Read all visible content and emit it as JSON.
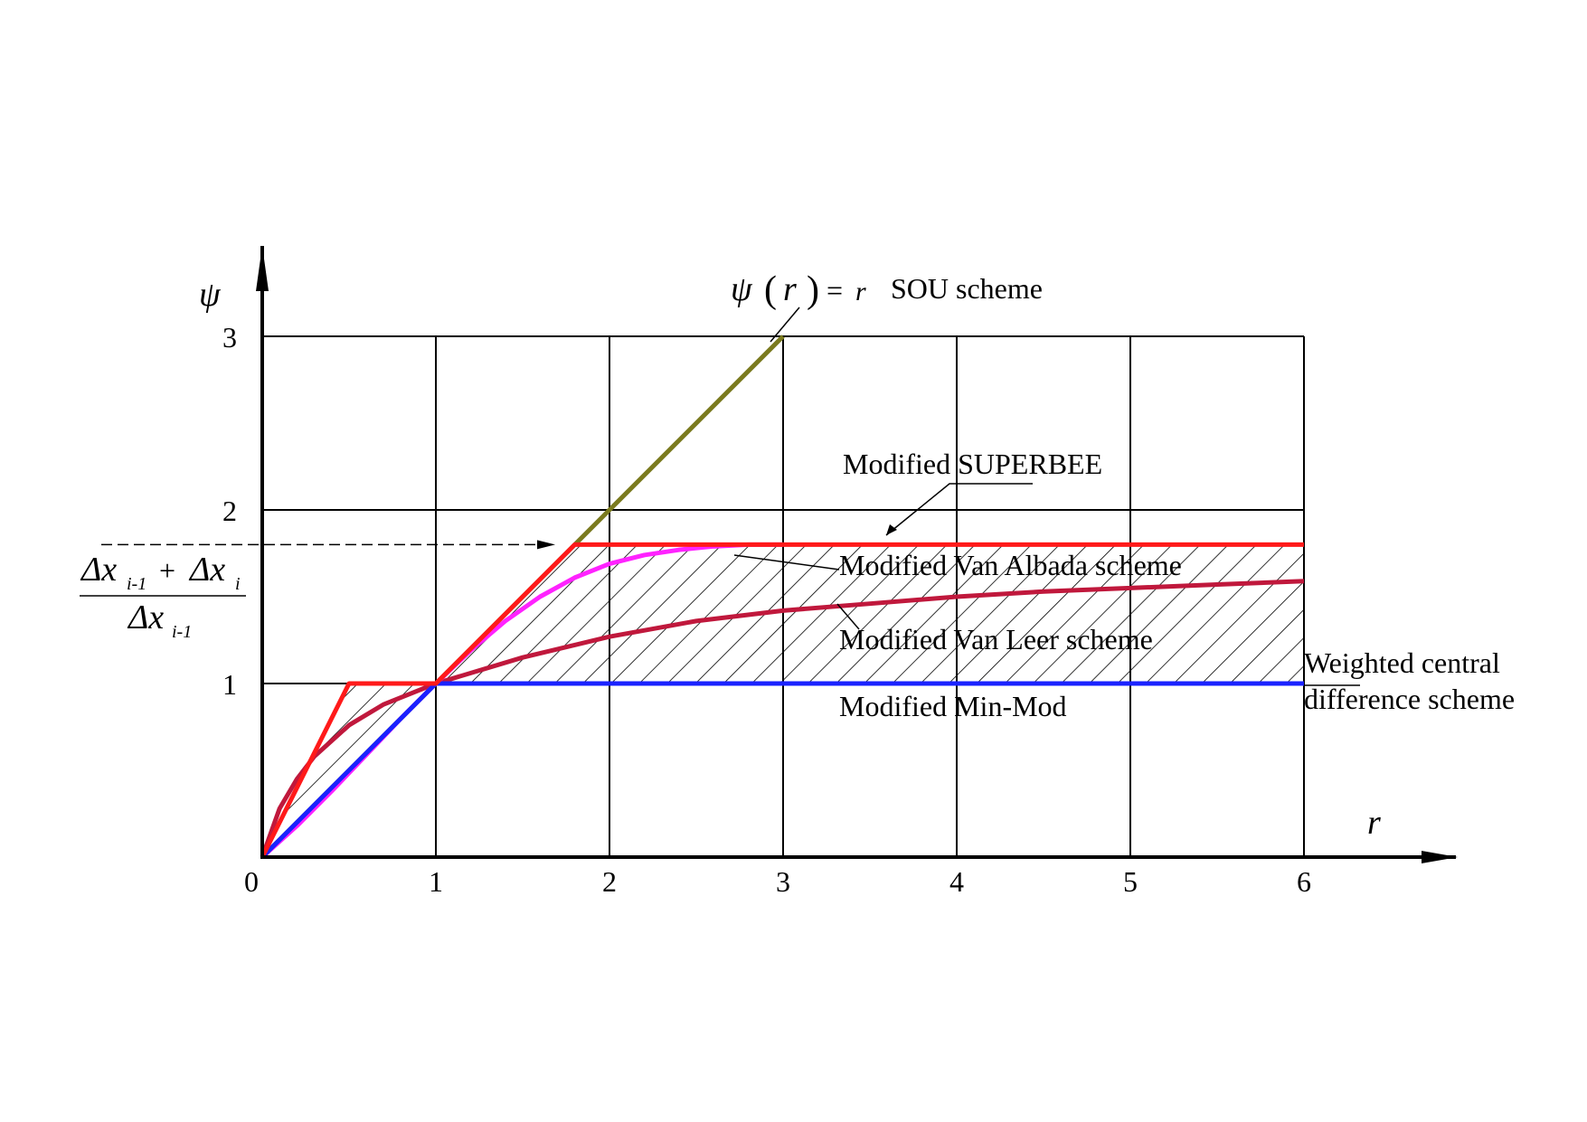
{
  "chart_data": {
    "type": "line",
    "title": "",
    "xlabel": "r",
    "ylabel": "ψ",
    "xlim": [
      0,
      6
    ],
    "ylim": [
      0,
      3
    ],
    "xticks": [
      "0",
      "1",
      "2",
      "3",
      "4",
      "5",
      "6"
    ],
    "yticks": [
      "1",
      "2",
      "3"
    ],
    "grid": true,
    "ratio_value": 1.8,
    "ratio_label": {
      "num_a": "Δx",
      "num_a_sub": "i-1",
      "plus": "+",
      "num_b": "Δx",
      "num_b_sub": "i",
      "den": "Δx",
      "den_sub": "i-1"
    },
    "sou_label": {
      "psi": "ψ",
      "lparen": "(",
      "r": "r",
      "rparen": ")",
      "eq": "=",
      "r2": "r",
      "name": "SOU scheme"
    },
    "series": [
      {
        "name": "SOU scheme",
        "color": "#7a7a1e",
        "x": [
          0,
          3
        ],
        "y": [
          0,
          3
        ]
      },
      {
        "name": "Modified SUPERBEE",
        "color": "#ff1a1a",
        "x": [
          0,
          0.5,
          1,
          1.8,
          6
        ],
        "y": [
          0,
          1,
          1,
          1.8,
          1.8
        ]
      },
      {
        "name": "Modified Van Albada scheme",
        "color": "#ff22ff",
        "x": [
          0,
          0.2,
          0.4,
          0.6,
          0.8,
          1.0,
          1.2,
          1.4,
          1.6,
          1.8,
          2.0,
          2.2,
          2.4,
          2.6,
          2.8,
          3.0
        ],
        "y": [
          0,
          0.18,
          0.38,
          0.59,
          0.8,
          1.0,
          1.19,
          1.36,
          1.5,
          1.61,
          1.69,
          1.74,
          1.77,
          1.79,
          1.8,
          1.8
        ]
      },
      {
        "name": "Modified Van Leer scheme",
        "color": "#c0183c",
        "x": [
          0,
          0.1,
          0.2,
          0.3,
          0.5,
          0.7,
          1.0,
          1.5,
          2.0,
          2.5,
          3.0,
          3.5,
          4.0,
          4.5,
          5.0,
          5.5,
          6.0
        ],
        "y": [
          0,
          0.28,
          0.45,
          0.58,
          0.76,
          0.88,
          1.0,
          1.15,
          1.27,
          1.36,
          1.42,
          1.46,
          1.5,
          1.53,
          1.55,
          1.57,
          1.59
        ]
      },
      {
        "name": "Modified Min-Mod",
        "color": "#1a22ff",
        "x": [
          0,
          1,
          6
        ],
        "y": [
          0,
          1,
          1
        ]
      }
    ],
    "annotations": [
      {
        "text": "Modified SUPERBEE"
      },
      {
        "text": "Modified Van Albada scheme"
      },
      {
        "text": "Modified Van Leer scheme"
      },
      {
        "text": "Modified Min-Mod"
      },
      {
        "text": "Weighted central"
      },
      {
        "text": "difference scheme"
      }
    ]
  }
}
